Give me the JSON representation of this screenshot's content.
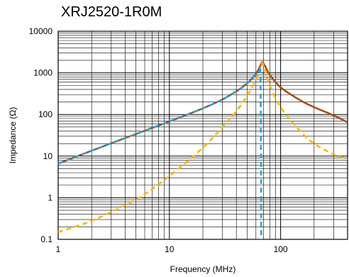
{
  "chart_data": {
    "type": "line",
    "title": "XRJ2520-1R0M",
    "xlabel": "Frequency (MHz)",
    "ylabel": "Impedance (Ω)",
    "x_scale": "log",
    "y_scale": "log",
    "xlim": [
      1,
      400
    ],
    "ylim": [
      0.1,
      10000
    ],
    "x_ticks": [
      "1",
      "10",
      "100"
    ],
    "y_ticks": [
      "0.1",
      "1",
      "10",
      "100",
      "1000",
      "10000"
    ],
    "grid": true,
    "legend": "none",
    "series": [
      {
        "color": "#a0521d",
        "style": "solid",
        "points": [
          [
            1,
            6.6
          ],
          [
            2,
            13.5
          ],
          [
            5,
            34
          ],
          [
            10,
            68
          ],
          [
            20,
            140
          ],
          [
            30,
            230
          ],
          [
            40,
            360
          ],
          [
            50,
            560
          ],
          [
            60,
            950
          ],
          [
            65,
            1400
          ],
          [
            68,
            1800
          ],
          [
            72,
            1500
          ],
          [
            80,
            900
          ],
          [
            100,
            450
          ],
          [
            150,
            220
          ],
          [
            200,
            150
          ],
          [
            300,
            95
          ],
          [
            400,
            65
          ]
        ]
      },
      {
        "color": "#2ba3d6",
        "style": "dashed",
        "points": [
          [
            1,
            6.6
          ],
          [
            2,
            13.5
          ],
          [
            5,
            34
          ],
          [
            10,
            68
          ],
          [
            20,
            140
          ],
          [
            30,
            230
          ],
          [
            40,
            360
          ],
          [
            50,
            560
          ],
          [
            60,
            900
          ],
          [
            64,
            1050
          ],
          [
            66,
            600
          ],
          [
            67,
            0.1
          ]
        ]
      },
      {
        "color": "#f7b900",
        "style": "dashed",
        "points": [
          [
            1,
            0.15
          ],
          [
            2,
            0.28
          ],
          [
            5,
            0.9
          ],
          [
            10,
            3.3
          ],
          [
            20,
            16
          ],
          [
            30,
            50
          ],
          [
            40,
            120
          ],
          [
            50,
            280
          ],
          [
            60,
            700
          ],
          [
            65,
            1200
          ],
          [
            68,
            1750
          ],
          [
            72,
            1200
          ],
          [
            80,
            500
          ],
          [
            100,
            150
          ],
          [
            150,
            40
          ],
          [
            200,
            20
          ],
          [
            300,
            11
          ],
          [
            400,
            8.5
          ]
        ]
      }
    ]
  }
}
